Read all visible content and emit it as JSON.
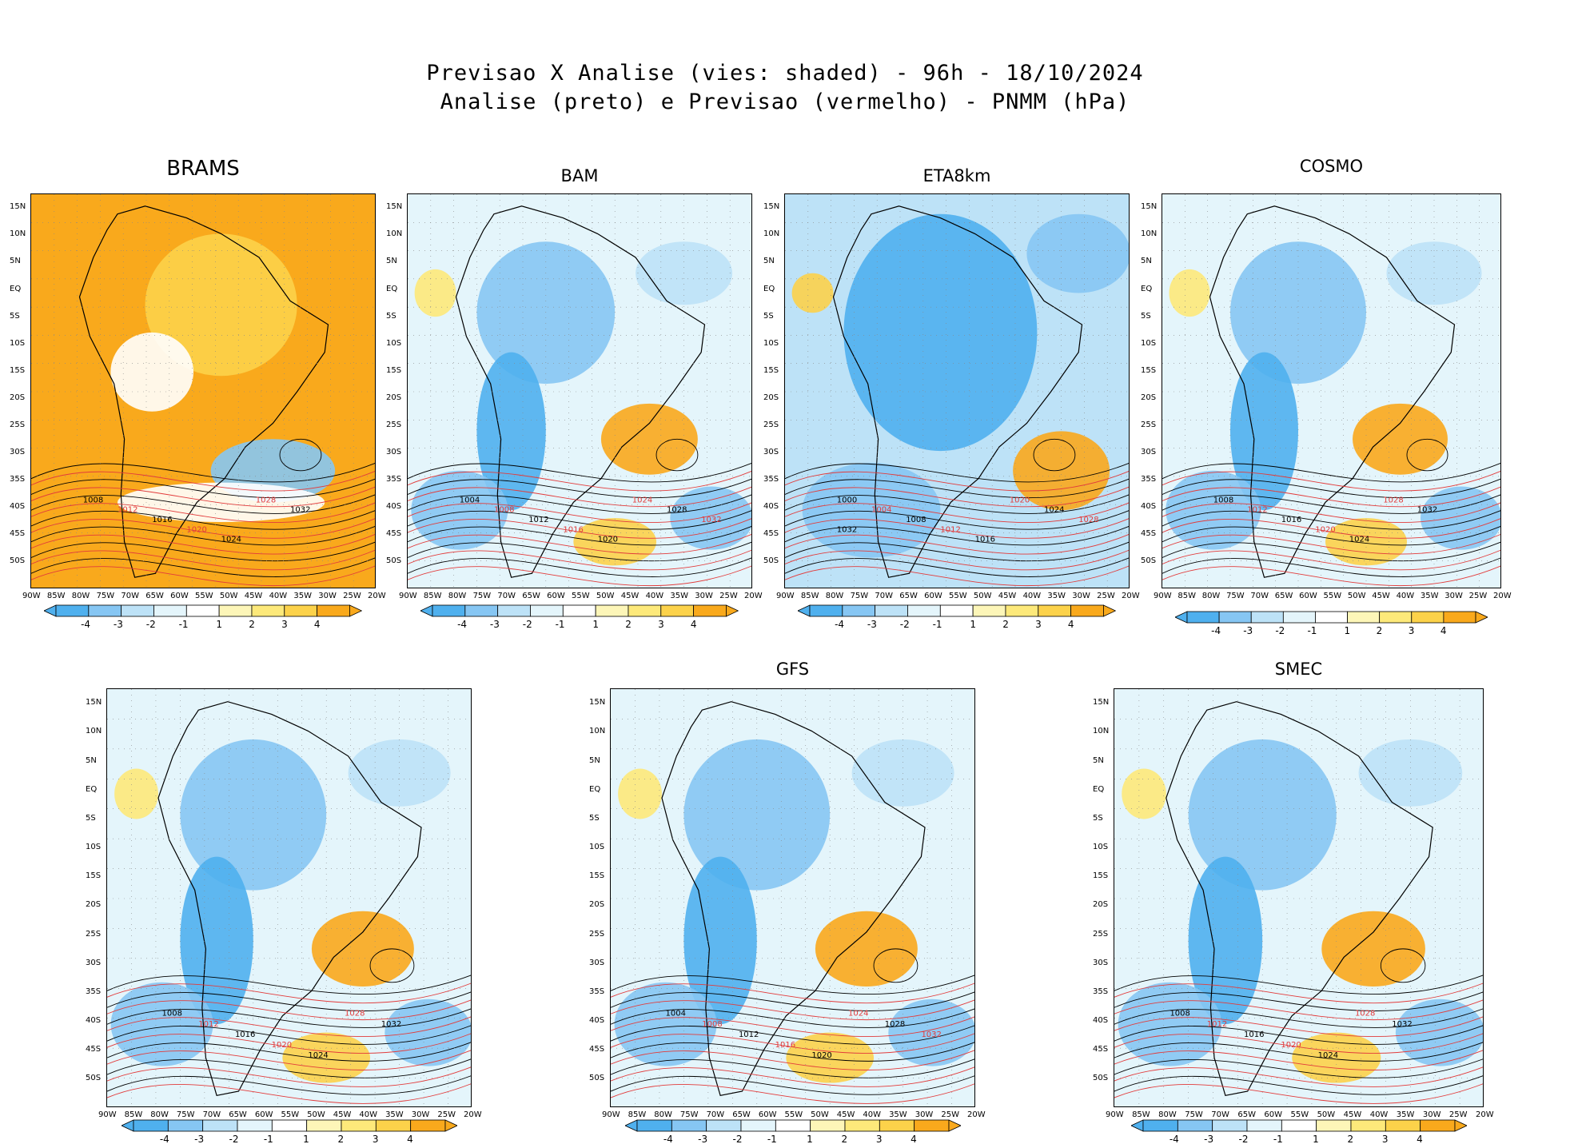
{
  "title": {
    "line1": "Previsao X Analise (vies: shaded) - 96h - 18/10/2024",
    "line2": "Analise (preto) e Previsao (vermelho) - PNMM (hPa)"
  },
  "colors": {
    "neg4": "#4fb0ee",
    "neg3": "#86c6f3",
    "neg2": "#bde2f7",
    "neg1": "#e4f5fb",
    "zero": "#ffffff",
    "pos1": "#fdf6b8",
    "pos2": "#fde97a",
    "pos3": "#fcd24a",
    "pos4": "#f9a91c",
    "analysis_line": "#000000",
    "forecast_line": "#e23b3b",
    "land_border": "#000000"
  },
  "lat_ticks": [
    "15N",
    "10N",
    "5N",
    "EQ",
    "5S",
    "10S",
    "15S",
    "20S",
    "25S",
    "30S",
    "35S",
    "40S",
    "45S",
    "50S"
  ],
  "lon_ticks": [
    "90W",
    "85W",
    "80W",
    "75W",
    "70W",
    "65W",
    "60W",
    "55W",
    "50W",
    "45W",
    "40W",
    "35W",
    "30W",
    "25W",
    "20W"
  ],
  "colorbar_labels": [
    "-4",
    "-3",
    "-2",
    "-1",
    "1",
    "2",
    "3",
    "4"
  ],
  "panels": [
    {
      "name": "BRAMS",
      "bias": "positive",
      "isobars": [
        "1008",
        "1012",
        "1016",
        "1020",
        "1024",
        "1028",
        "1032"
      ]
    },
    {
      "name": "BAM",
      "bias": "mixed",
      "isobars": [
        "1004",
        "1008",
        "1012",
        "1016",
        "1020",
        "1024",
        "1028",
        "1032"
      ]
    },
    {
      "name": "ETA8km",
      "bias": "negative",
      "isobars": [
        "1000",
        "1004",
        "1008",
        "1012",
        "1016",
        "1020",
        "1024",
        "1028",
        "1032"
      ]
    },
    {
      "name": "COSMO",
      "bias": "mixed",
      "isobars": [
        "1008",
        "1012",
        "1016",
        "1020",
        "1024",
        "1028",
        "1032"
      ]
    },
    {
      "name": "",
      "bias": "mixed",
      "isobars": [
        "1008",
        "1012",
        "1016",
        "1020",
        "1024",
        "1028",
        "1032"
      ]
    },
    {
      "name": "GFS",
      "bias": "mixed",
      "isobars": [
        "1004",
        "1008",
        "1012",
        "1016",
        "1020",
        "1024",
        "1028",
        "1032"
      ]
    },
    {
      "name": "SMEC",
      "bias": "mixed",
      "isobars": [
        "1008",
        "1012",
        "1016",
        "1020",
        "1024",
        "1028",
        "1032"
      ]
    }
  ]
}
